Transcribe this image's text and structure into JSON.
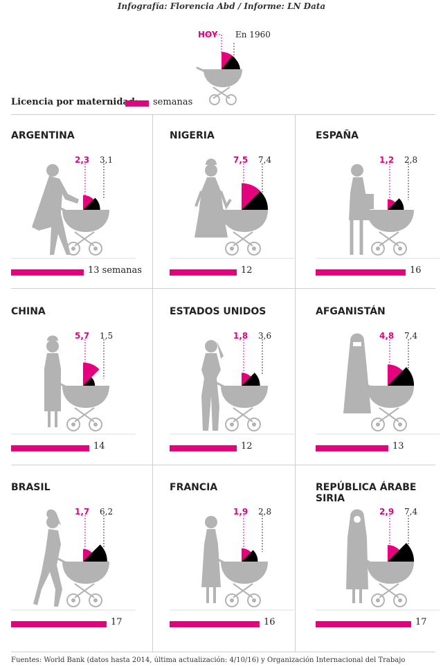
{
  "credit": "Infografía: Florencia Abd / Informe: LN Data",
  "legend": {
    "now_label": "HOY",
    "then_label": "En 1960",
    "maternity_label": "Licencia por maternidad:",
    "weeks_unit": "semanas"
  },
  "colors": {
    "accent": "#e5007e",
    "dark": "#000000",
    "figure": "#b3b3b3",
    "rule": "#cfcfcf"
  },
  "countries": [
    {
      "name": "ARGENTINA",
      "now": "2,3",
      "then": "3,1",
      "weeks_label": "13 semanas",
      "now_value": 2.3,
      "then_value": 3.1,
      "weeks": 13,
      "figure": "woman-leaning-icon"
    },
    {
      "name": "NIGERIA",
      "now": "7,5",
      "then": "7,4",
      "weeks_label": "12",
      "now_value": 7.5,
      "then_value": 7.4,
      "weeks": 12,
      "figure": "woman-dress-icon"
    },
    {
      "name": "ESPAÑA",
      "now": "1,2",
      "then": "2,8",
      "weeks_label": "16",
      "now_value": 1.2,
      "then_value": 2.8,
      "weeks": 16,
      "figure": "woman-bag-icon"
    },
    {
      "name": "CHINA",
      "now": "5,7",
      "then": "1,5",
      "weeks_label": "14",
      "now_value": 5.7,
      "then_value": 1.5,
      "weeks": 14,
      "figure": "woman-qipao-icon"
    },
    {
      "name": "ESTADOS UNIDOS",
      "now": "1,8",
      "then": "3,6",
      "weeks_label": "12",
      "now_value": 1.8,
      "then_value": 3.6,
      "weeks": 12,
      "figure": "woman-pants-icon"
    },
    {
      "name": "AFGANISTÁN",
      "now": "4,8",
      "then": "7,4",
      "weeks_label": "13",
      "now_value": 4.8,
      "then_value": 7.4,
      "weeks": 13,
      "figure": "woman-veil-icon"
    },
    {
      "name": "BRASIL",
      "now": "1,7",
      "then": "6,2",
      "weeks_label": "17",
      "now_value": 1.7,
      "then_value": 6.2,
      "weeks": 17,
      "figure": "woman-walking-icon"
    },
    {
      "name": "FRANCIA",
      "now": "1,9",
      "then": "2,8",
      "weeks_label": "16",
      "now_value": 1.9,
      "then_value": 2.8,
      "weeks": 16,
      "figure": "woman-skirt-icon"
    },
    {
      "name": "REPÚBLICA ÁRABE SIRIA",
      "now": "2,9",
      "then": "7,4",
      "weeks_label": "17",
      "now_value": 2.9,
      "then_value": 7.4,
      "weeks": 17,
      "figure": "woman-hijab-icon"
    }
  ],
  "source": "Fuentes: World Bank (datos hasta 2014, última actualización: 4/10/16) y Organización Internacional del Trabajo"
}
